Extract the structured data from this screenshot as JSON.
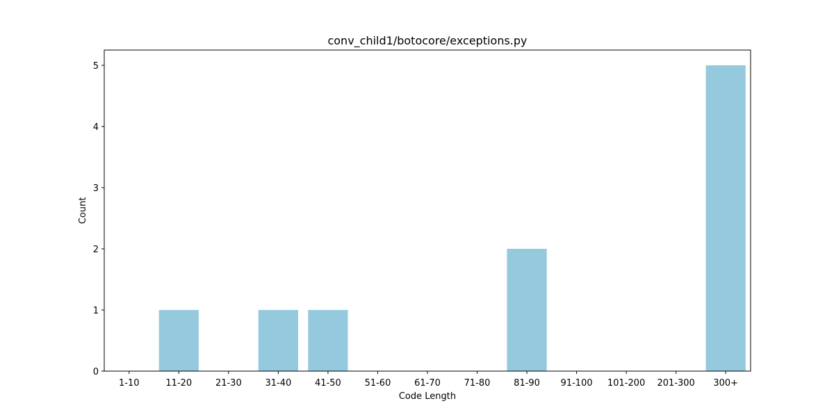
{
  "chart_data": {
    "type": "bar",
    "title": "conv_child1/botocore/exceptions.py",
    "xlabel": "Code Length",
    "ylabel": "Count",
    "categories": [
      "1-10",
      "11-20",
      "21-30",
      "31-40",
      "41-50",
      "51-60",
      "61-70",
      "71-80",
      "81-90",
      "91-100",
      "101-200",
      "201-300",
      "300+"
    ],
    "values": [
      0,
      1,
      0,
      1,
      1,
      0,
      0,
      0,
      2,
      0,
      0,
      0,
      5
    ],
    "yticks": [
      0,
      1,
      2,
      3,
      4,
      5
    ],
    "ylim": [
      0,
      5.25
    ],
    "grid": false,
    "colors": {
      "bar": "#95c9de",
      "axis": "#000000",
      "background": "#ffffff"
    }
  }
}
